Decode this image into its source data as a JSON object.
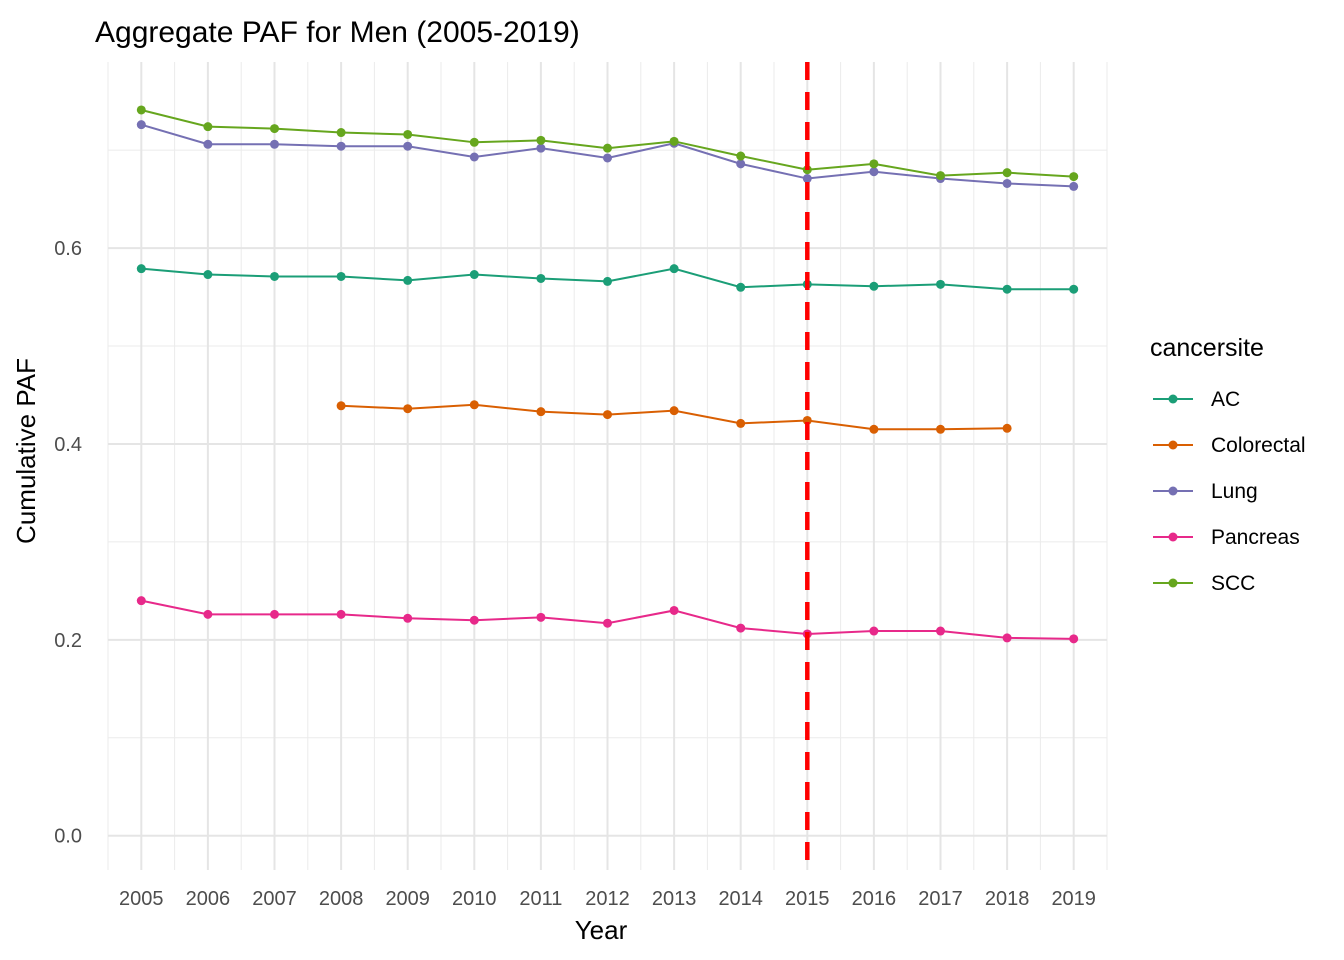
{
  "chart_data": {
    "type": "line",
    "title": "Aggregate PAF for Men (2005-2019)",
    "xlabel": "Year",
    "ylabel": "Cumulative PAF",
    "x": [
      2005,
      2006,
      2007,
      2008,
      2009,
      2010,
      2011,
      2012,
      2013,
      2014,
      2015,
      2016,
      2017,
      2018,
      2019
    ],
    "x_tick_labels": [
      "2005",
      "2006",
      "2007",
      "2008",
      "2009",
      "2010",
      "2011",
      "2012",
      "2013",
      "2014",
      "2015",
      "2016",
      "2017",
      "2018",
      "2019"
    ],
    "ylim": [
      -0.035,
      0.79
    ],
    "y_ticks": [
      0.0,
      0.2,
      0.4,
      0.6
    ],
    "y_tick_labels": [
      "0.0",
      "0.2",
      "0.4",
      "0.6"
    ],
    "grid": true,
    "legend": {
      "title": "cancersite",
      "position": "right"
    },
    "vline": {
      "x": 2015,
      "color": "#ff0000",
      "style": "dashed"
    },
    "series": [
      {
        "name": "AC",
        "color": "#1b9e77",
        "values": [
          0.579,
          0.573,
          0.571,
          0.571,
          0.567,
          0.573,
          0.569,
          0.566,
          0.579,
          0.56,
          0.563,
          0.561,
          0.563,
          0.558,
          0.558
        ]
      },
      {
        "name": "Colorectal",
        "color": "#d95f02",
        "values": [
          null,
          null,
          null,
          0.439,
          0.436,
          0.44,
          0.433,
          0.43,
          0.434,
          0.421,
          0.424,
          0.415,
          0.415,
          0.416,
          null
        ]
      },
      {
        "name": "Lung",
        "color": "#7570b3",
        "values": [
          0.726,
          0.706,
          0.706,
          0.704,
          0.704,
          0.693,
          0.702,
          0.692,
          0.707,
          0.686,
          0.671,
          0.678,
          0.671,
          0.666,
          0.663
        ]
      },
      {
        "name": "Pancreas",
        "color": "#e7298a",
        "values": [
          0.24,
          0.226,
          0.226,
          0.226,
          0.222,
          0.22,
          0.223,
          0.217,
          0.23,
          0.212,
          0.206,
          0.209,
          0.209,
          0.202,
          0.201
        ]
      },
      {
        "name": "SCC",
        "color": "#66a61e",
        "values": [
          0.741,
          0.724,
          0.722,
          0.718,
          0.716,
          0.708,
          0.71,
          0.702,
          0.709,
          0.694,
          0.68,
          0.686,
          0.674,
          0.677,
          0.673
        ]
      }
    ]
  }
}
